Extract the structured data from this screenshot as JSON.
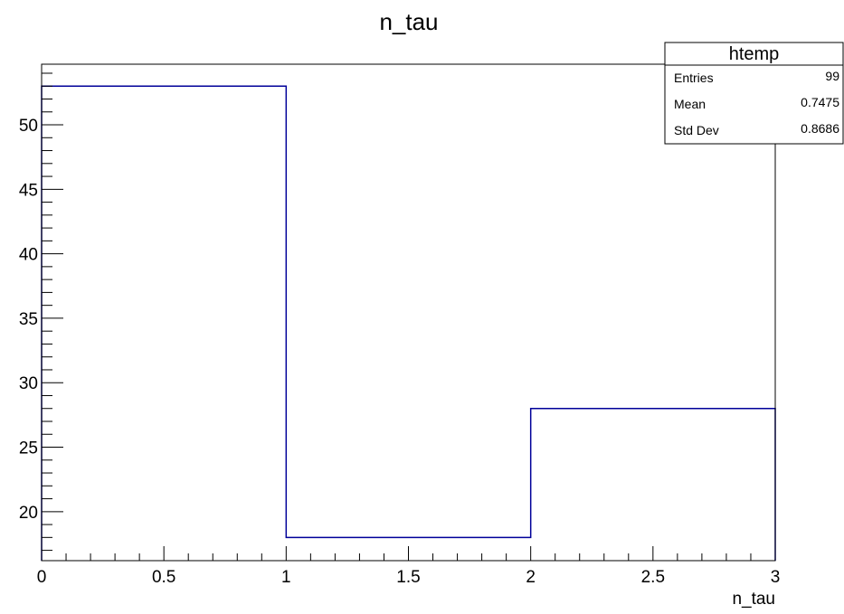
{
  "chart_data": {
    "type": "bar",
    "title": "n_tau",
    "xlabel": "n_tau",
    "ylabel": "",
    "bin_edges": [
      0,
      1,
      2,
      3
    ],
    "values": [
      53,
      18,
      28
    ],
    "xlim": [
      0,
      3
    ],
    "ylim": [
      16.2,
      54.7
    ],
    "x_ticks": [
      0,
      0.5,
      1,
      1.5,
      2,
      2.5,
      3
    ],
    "x_tick_labels": [
      "0",
      "0.5",
      "1",
      "1.5",
      "2",
      "2.5",
      "3"
    ],
    "y_ticks": [
      20,
      25,
      30,
      35,
      40,
      45,
      50
    ],
    "y_tick_labels": [
      "20",
      "25",
      "30",
      "35",
      "40",
      "45",
      "50"
    ],
    "grid": false,
    "line_color": "#000099",
    "stats_box": {
      "name": "htemp",
      "placement": "top-right",
      "rows": [
        {
          "label": "Entries",
          "value": "99"
        },
        {
          "label": "Mean",
          "value": "0.7475"
        },
        {
          "label": "Std Dev",
          "value": "0.8686"
        }
      ]
    }
  }
}
